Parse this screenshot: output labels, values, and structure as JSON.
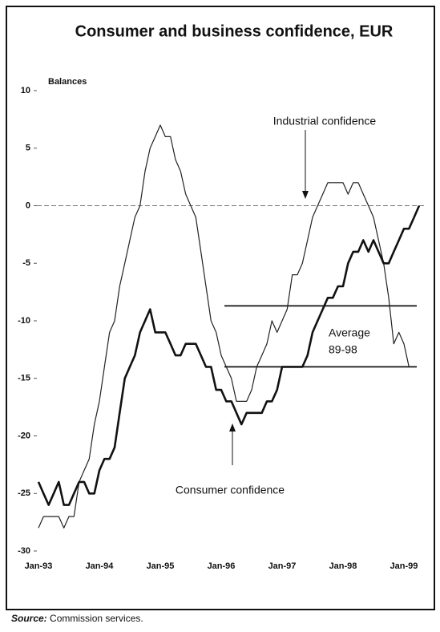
{
  "chart_data": {
    "type": "line",
    "title": "Consumer and business confidence, EUR",
    "y_label": "Balances",
    "categories": [
      "Jan-93",
      null,
      null,
      null,
      null,
      null,
      null,
      null,
      null,
      null,
      null,
      null,
      "Jan-94",
      null,
      null,
      null,
      null,
      null,
      null,
      null,
      null,
      null,
      null,
      null,
      "Jan-95",
      null,
      null,
      null,
      null,
      null,
      null,
      null,
      null,
      null,
      null,
      null,
      "Jan-96",
      null,
      null,
      null,
      null,
      null,
      null,
      null,
      null,
      null,
      null,
      null,
      "Jan-97",
      null,
      null,
      null,
      null,
      null,
      null,
      null,
      null,
      null,
      null,
      null,
      "Jan-98",
      null,
      null,
      null,
      null,
      null,
      null,
      null,
      null,
      null,
      null,
      null,
      "Jan-99",
      null,
      null,
      null
    ],
    "series": [
      {
        "name": "Industrial confidence",
        "color": "#222222",
        "width": 1.2,
        "values": [
          -28,
          -27,
          -27,
          -27,
          -27,
          -28,
          -27,
          -27,
          -24,
          -23,
          -22,
          -19,
          -17,
          -14,
          -11,
          -10,
          -7,
          -5,
          -3,
          -1,
          0,
          3,
          5,
          6,
          7,
          6,
          6,
          4,
          3,
          1,
          0,
          -1,
          -4,
          -7,
          -10,
          -11,
          -13,
          -14,
          -15,
          -17,
          -17,
          -17,
          -16,
          -14,
          -13,
          -12,
          -10,
          -11,
          -10,
          -9,
          -6,
          -6,
          -5,
          -3,
          -1,
          0,
          1,
          2,
          2,
          2,
          2,
          1,
          2,
          2,
          1,
          0,
          -1,
          -3,
          -5,
          -8,
          -12,
          -11,
          -12,
          -14,
          null,
          null
        ]
      },
      {
        "name": "Consumer confidence",
        "color": "#111111",
        "width": 2.6,
        "values": [
          -24,
          -25,
          -26,
          -25,
          -24,
          -26,
          -26,
          -25,
          -24,
          -24,
          -25,
          -25,
          -23,
          -22,
          -22,
          -21,
          -18,
          -15,
          -14,
          -13,
          -11,
          -10,
          -9,
          -11,
          -11,
          -11,
          -12,
          -13,
          -13,
          -12,
          -12,
          -12,
          -13,
          -14,
          -14,
          -16,
          -16,
          -17,
          -17,
          -18,
          -19,
          -18,
          -18,
          -18,
          -18,
          -17,
          -17,
          -16,
          -14,
          -14,
          -14,
          -14,
          -14,
          -13,
          -11,
          -10,
          -9,
          -8,
          -8,
          -7,
          -7,
          -5,
          -4,
          -4,
          -3,
          -4,
          -3,
          -4,
          -5,
          -5,
          -4,
          -3,
          -2,
          -2,
          -1,
          0
        ]
      }
    ],
    "averages": [
      -8.7,
      -14
    ],
    "average_label": [
      "Average",
      "89-98"
    ],
    "ylim": [
      -30,
      10
    ],
    "yticks": [
      10,
      5,
      0,
      -5,
      -10,
      -15,
      -20,
      -25,
      -30
    ],
    "zero_line": true,
    "source_label": "Source:",
    "source": "Commission services."
  }
}
